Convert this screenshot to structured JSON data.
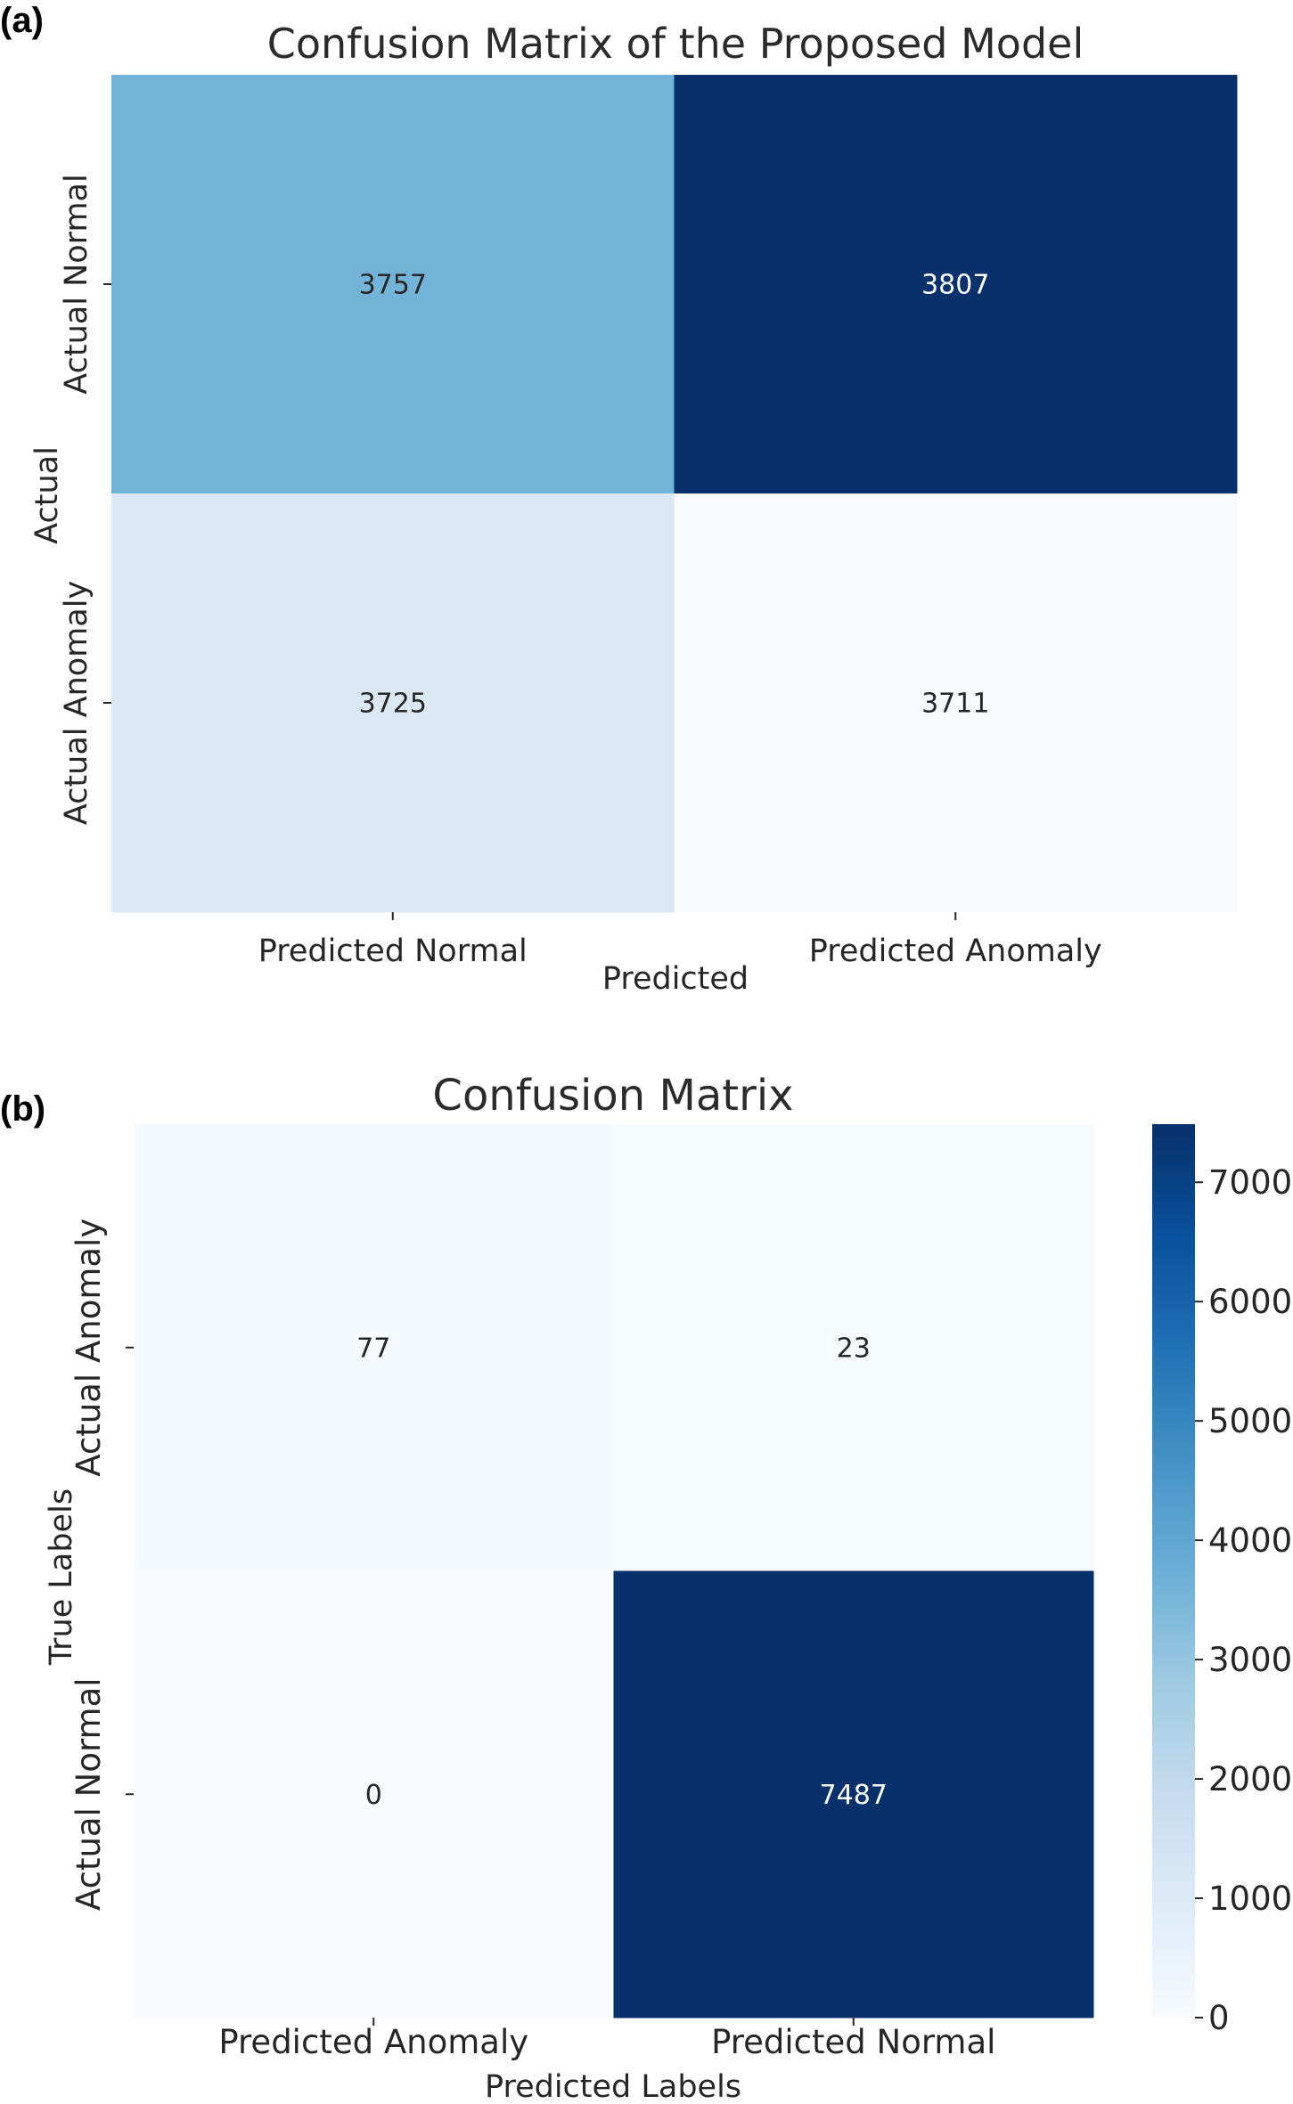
{
  "chart_data": [
    {
      "type": "heatmap",
      "panel_label": "(a)",
      "title": "Confusion Matrix of the Proposed Model",
      "xlabel": "Predicted",
      "ylabel": "Actual",
      "x_categories": [
        "Predicted Normal",
        "Predicted Anomaly"
      ],
      "y_categories": [
        "Actual Normal",
        "Actual Anomaly"
      ],
      "values": [
        [
          3757,
          3807
        ],
        [
          3725,
          3711
        ]
      ],
      "colormap": "Blues",
      "vmin": 3711,
      "vmax": 3807,
      "colorbar": false
    },
    {
      "type": "heatmap",
      "panel_label": "(b)",
      "title": "Confusion Matrix",
      "xlabel": "Predicted Labels",
      "ylabel": "True Labels",
      "x_categories": [
        "Predicted Anomaly",
        "Predicted Normal"
      ],
      "y_categories": [
        "Actual Anomaly",
        "Actual Normal"
      ],
      "values": [
        [
          77,
          23
        ],
        [
          0,
          7487
        ]
      ],
      "colormap": "Blues",
      "vmin": 0,
      "vmax": 7487,
      "colorbar": true,
      "colorbar_ticks": [
        0,
        1000,
        2000,
        3000,
        4000,
        5000,
        6000,
        7000
      ]
    }
  ],
  "colors": {
    "blues_stops": [
      "#f7fbff",
      "#deebf7",
      "#c6dbef",
      "#9ecae1",
      "#6baed6",
      "#4292c6",
      "#2171b5",
      "#08519c",
      "#08306b"
    ],
    "text_dark": "#262626",
    "text_light": "#ffffff"
  }
}
